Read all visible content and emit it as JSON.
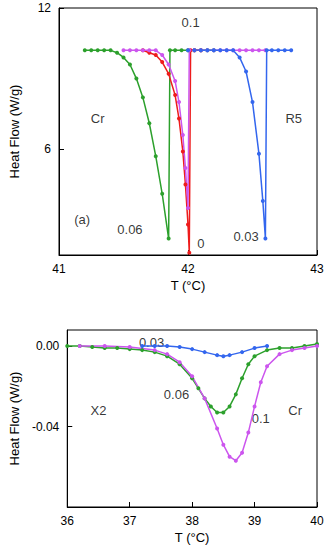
{
  "chart_data": [
    {
      "type": "line",
      "marker": "circle",
      "grid": false,
      "xlabel": "T (°C)",
      "ylabel": "Heat Flow (W/g)",
      "xlim": [
        41,
        43
      ],
      "ylim": [
        1.5,
        12
      ],
      "xticks": [
        41,
        42,
        43
      ],
      "yticks": [
        6,
        12
      ],
      "series": [
        {
          "color": "#2ca02c",
          "x": [
            41.2,
            41.25,
            41.3,
            41.35,
            41.4,
            41.45,
            41.5,
            41.55,
            41.6,
            41.65,
            41.7,
            41.75,
            41.8,
            41.85,
            41.86,
            41.9,
            41.95,
            42.0,
            42.05,
            42.1,
            42.15,
            42.2
          ],
          "values": [
            10.2,
            10.2,
            10.2,
            10.2,
            10.2,
            10.1,
            9.9,
            9.6,
            9.0,
            8.2,
            7.1,
            5.7,
            4.1,
            2.2,
            10.2,
            10.2,
            10.2,
            10.2,
            10.2,
            10.2,
            10.2,
            10.2
          ]
        },
        {
          "color": "#ee1c1c",
          "x": [
            41.65,
            41.7,
            41.75,
            41.8,
            41.85,
            41.9,
            41.93,
            41.96,
            41.98,
            42.0,
            42.01,
            42.02,
            42.05,
            42.1
          ],
          "values": [
            10.2,
            10.1,
            10.0,
            9.7,
            9.2,
            8.3,
            7.3,
            5.9,
            4.5,
            2.8,
            1.6,
            10.2,
            10.2,
            10.2
          ]
        },
        {
          "color": "#cc55ee",
          "x": [
            41.5,
            41.55,
            41.6,
            41.65,
            41.7,
            41.75,
            41.8,
            41.85,
            41.9,
            41.93,
            41.96,
            41.98,
            42.0,
            42.01,
            42.05,
            42.1,
            42.15,
            42.2,
            42.25,
            42.3,
            42.35,
            42.4,
            42.45,
            42.5,
            42.55,
            42.6
          ],
          "values": [
            10.2,
            10.2,
            10.2,
            10.2,
            10.2,
            10.2,
            10.0,
            9.6,
            8.9,
            8.0,
            6.6,
            5.2,
            3.5,
            10.2,
            10.2,
            10.2,
            10.2,
            10.2,
            10.2,
            10.2,
            10.2,
            10.2,
            10.2,
            10.2,
            10.2,
            10.2
          ]
        },
        {
          "color": "#3366ee",
          "x": [
            42.0,
            42.05,
            42.1,
            42.15,
            42.2,
            42.25,
            42.3,
            42.35,
            42.4,
            42.45,
            42.5,
            42.55,
            42.58,
            42.6,
            42.61,
            42.65,
            42.7,
            42.75,
            42.8
          ],
          "values": [
            10.2,
            10.2,
            10.2,
            10.2,
            10.2,
            10.2,
            10.2,
            10.2,
            9.9,
            9.3,
            8.0,
            5.8,
            3.8,
            2.2,
            10.2,
            10.2,
            10.2,
            10.2,
            10.2
          ]
        }
      ],
      "annotations": [
        {
          "text": "Cr",
          "x": 41.3,
          "y": 7.3
        },
        {
          "text": "R5",
          "x": 42.82,
          "y": 7.3
        },
        {
          "text": "0.06",
          "x": 41.55,
          "y": 2.6
        },
        {
          "text": "0",
          "x": 42.1,
          "y": 2.0
        },
        {
          "text": "0.03",
          "x": 42.45,
          "y": 2.3
        },
        {
          "text": "0.1",
          "x": 42.02,
          "y": 11.4
        },
        {
          "text": "(a)",
          "x": 41.18,
          "y": 3.0
        }
      ]
    },
    {
      "type": "line",
      "marker": "circle",
      "grid": false,
      "xlabel": "T (°C)",
      "ylabel": "Heat Flow (W/g)",
      "xlim": [
        36,
        40
      ],
      "ylim": [
        -0.08,
        0.008
      ],
      "xticks": [
        36,
        37,
        38,
        39,
        40
      ],
      "yticks": [
        {
          "value": 0,
          "label": "0.00"
        },
        {
          "value": -0.04,
          "label": "-0.04"
        }
      ],
      "series": [
        {
          "color": "#2ca02c",
          "x": [
            35.8,
            36.0,
            36.2,
            36.4,
            36.6,
            36.8,
            37.0,
            37.2,
            37.4,
            37.6,
            37.8,
            38.0,
            38.1,
            38.2,
            38.3,
            38.4,
            38.5,
            38.6,
            38.7,
            38.8,
            38.9,
            39.0,
            39.2,
            39.4,
            39.6,
            39.8,
            40.0
          ],
          "values": [
            0,
            0,
            0,
            -0.0005,
            -0.001,
            -0.001,
            -0.0015,
            -0.002,
            -0.003,
            -0.005,
            -0.009,
            -0.016,
            -0.021,
            -0.026,
            -0.03,
            -0.033,
            -0.033,
            -0.03,
            -0.024,
            -0.016,
            -0.009,
            -0.005,
            -0.002,
            -0.001,
            -0.001,
            0,
            0.001
          ]
        },
        {
          "color": "#cc55ee",
          "x": [
            36.2,
            36.6,
            37.0,
            37.4,
            37.6,
            37.8,
            38.0,
            38.2,
            38.4,
            38.5,
            38.6,
            38.7,
            38.8,
            38.9,
            39.0,
            39.1,
            39.2,
            39.4,
            39.6,
            39.8,
            40.0,
            40.1
          ],
          "values": [
            0,
            0,
            -0.0005,
            -0.002,
            -0.004,
            -0.008,
            -0.015,
            -0.026,
            -0.041,
            -0.049,
            -0.055,
            -0.057,
            -0.053,
            -0.043,
            -0.03,
            -0.018,
            -0.01,
            -0.004,
            -0.002,
            -0.001,
            0,
            0
          ]
        },
        {
          "color": "#3366ee",
          "x": [
            37.2,
            37.4,
            37.6,
            37.8,
            38.0,
            38.2,
            38.4,
            38.5,
            38.6,
            38.8,
            39.0,
            39.2
          ],
          "values": [
            0,
            0,
            0,
            -0.0005,
            -0.0015,
            -0.003,
            -0.0045,
            -0.005,
            -0.0045,
            -0.003,
            -0.001,
            0
          ]
        }
      ],
      "annotations": [
        {
          "text": "0.03",
          "x": 37.35,
          "y": 0.002
        },
        {
          "text": "0.06",
          "x": 37.75,
          "y": -0.024
        },
        {
          "text": "0.1",
          "x": 39.1,
          "y": -0.036
        },
        {
          "text": "X2",
          "x": 36.5,
          "y": -0.032
        },
        {
          "text": "Cr",
          "x": 39.65,
          "y": -0.032
        }
      ]
    }
  ]
}
